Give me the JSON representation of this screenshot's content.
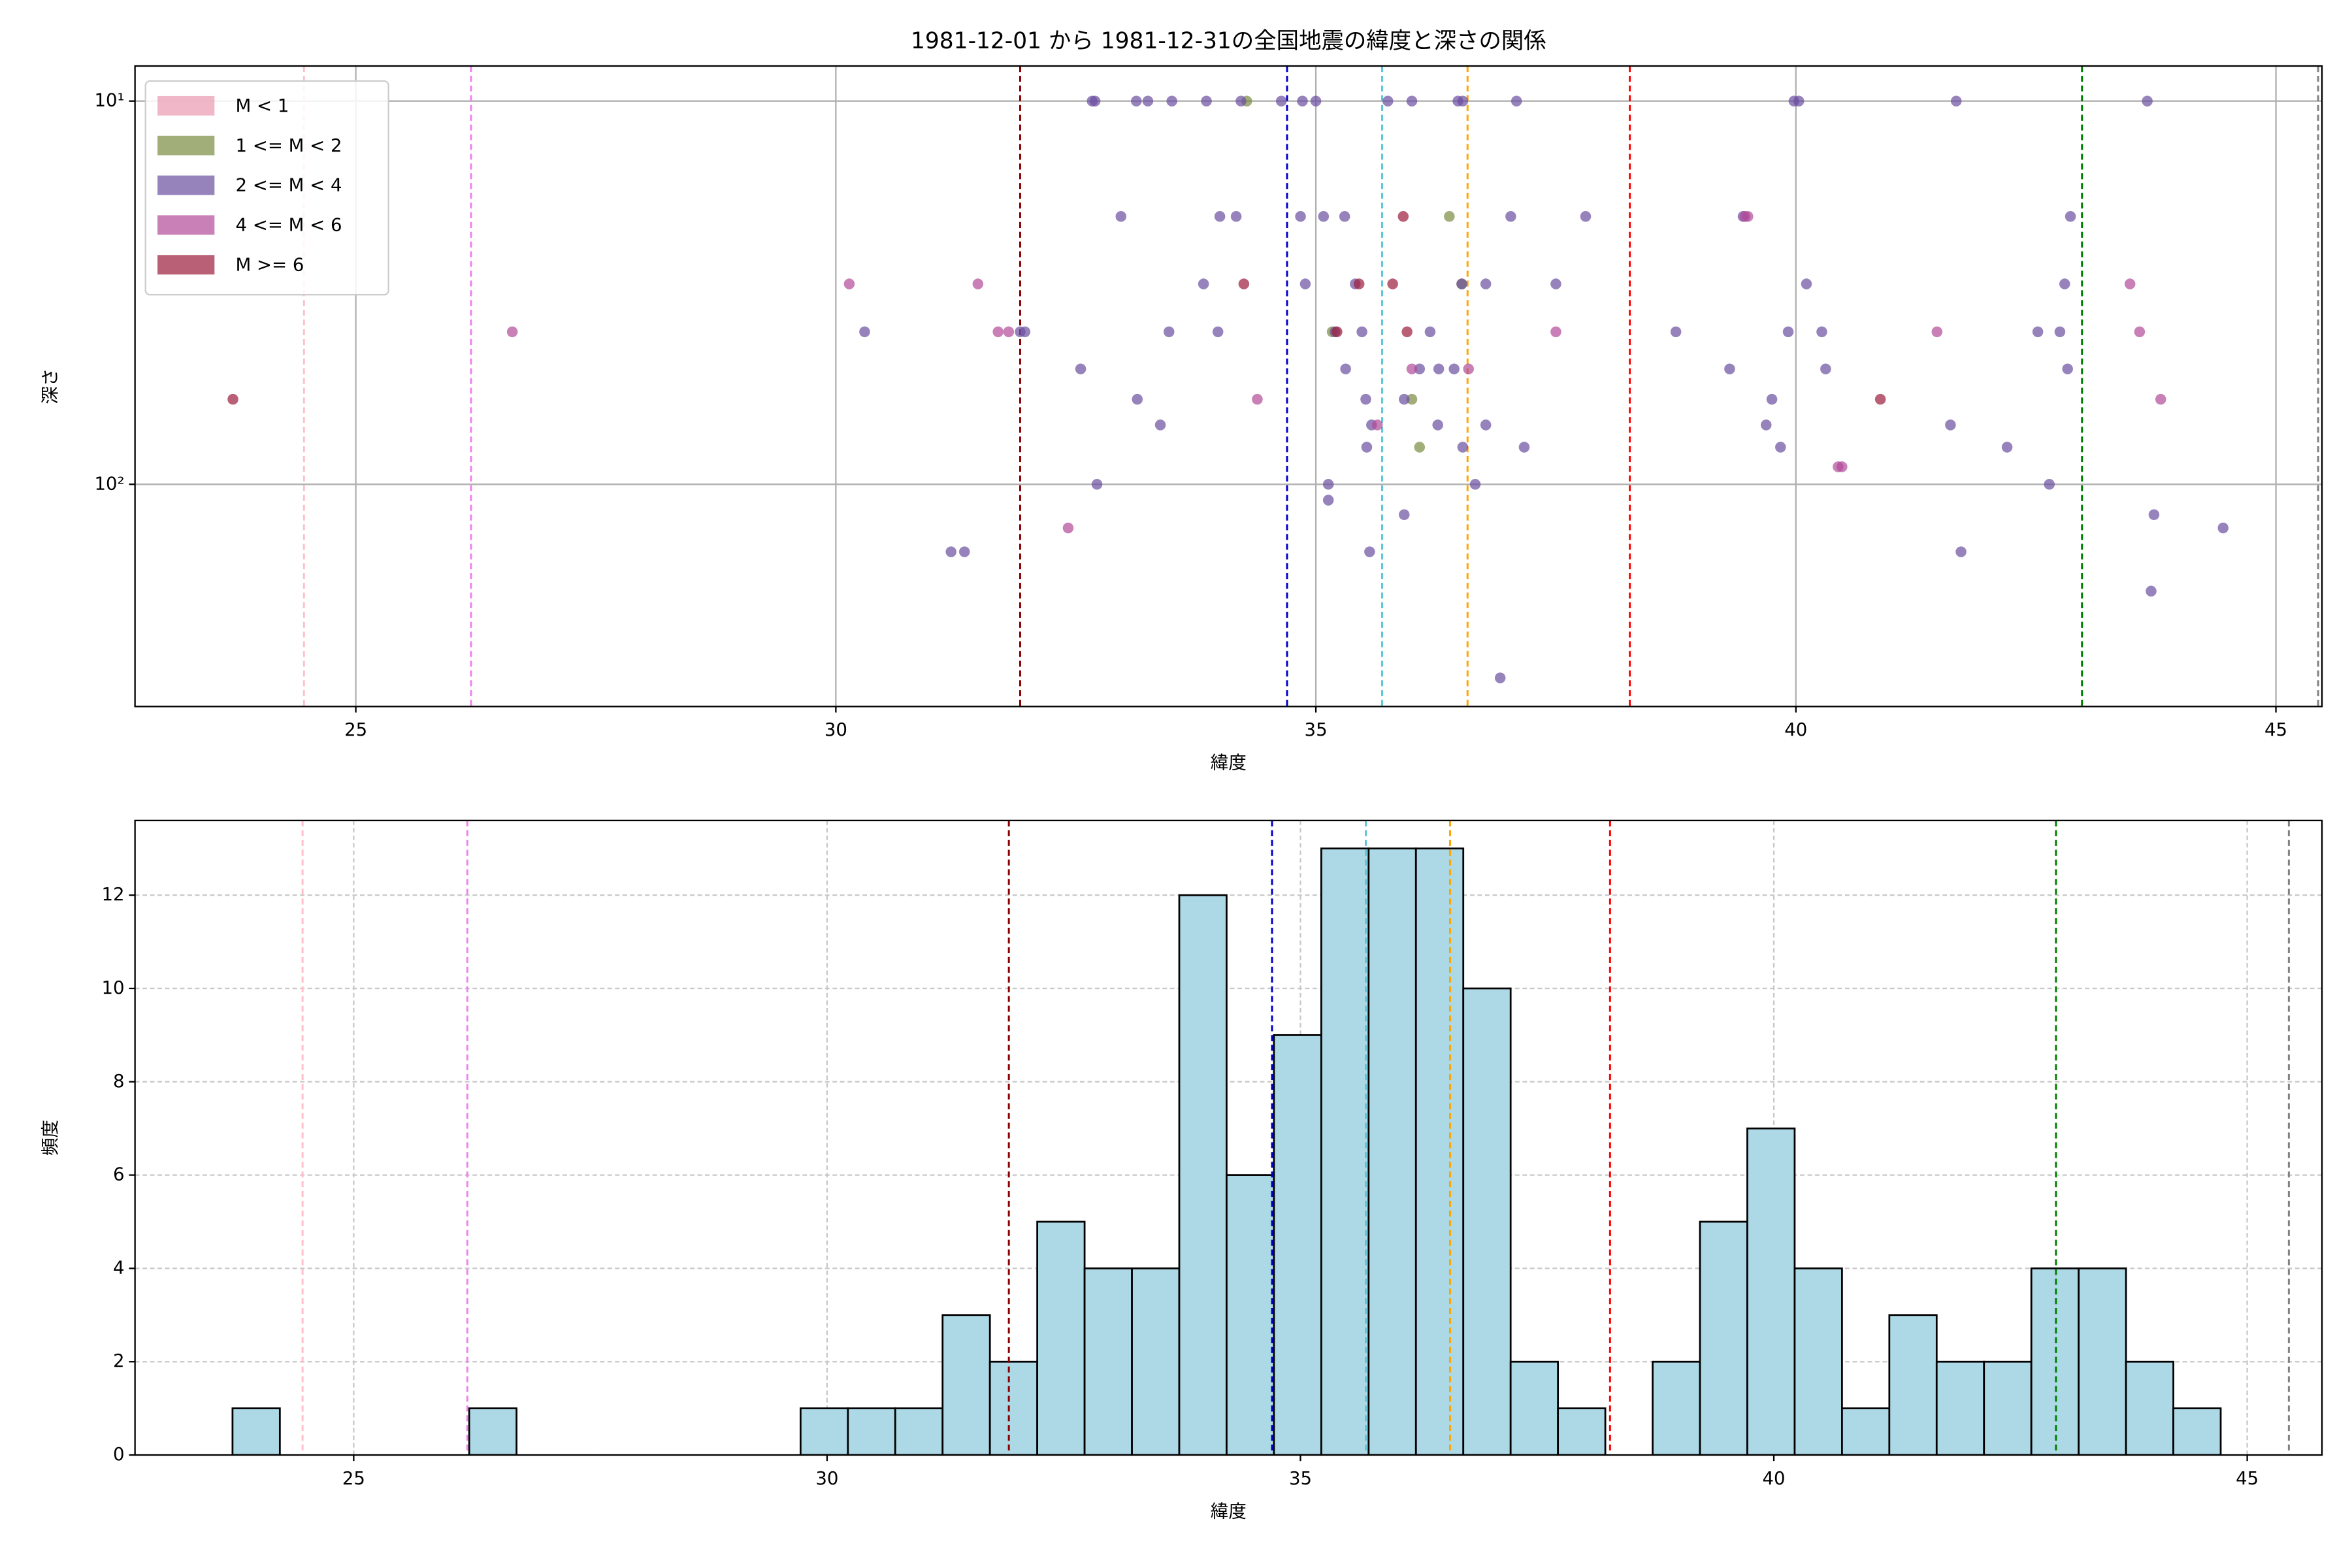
{
  "chart_data": [
    {
      "type": "scatter",
      "title": "1981-12-01 から 1981-12-31の全国地震の緯度と深さの関係",
      "x_label": "緯度",
      "y_label": "深さ",
      "xlim": [
        22.7,
        45.48
      ],
      "xticks": [
        25,
        30,
        35,
        40,
        45
      ],
      "ylim": [
        380,
        8.1
      ],
      "y_scale": "log",
      "yticks": [
        {
          "value": 10,
          "label": "10¹"
        },
        {
          "value": 100,
          "label": "10²"
        }
      ],
      "grid": true,
      "grid_style": "solid",
      "legend": "upper left",
      "marker_alpha": 0.7,
      "reference_lines": [
        {
          "x": 24.46,
          "color": "#ffc0cb"
        },
        {
          "x": 26.2,
          "color": "#ee82ee"
        },
        {
          "x": 31.92,
          "color": "#8b0000"
        },
        {
          "x": 34.7,
          "color": "#0000cd"
        },
        {
          "x": 35.69,
          "color": "#5bc8d8"
        },
        {
          "x": 36.58,
          "color": "#ffa500"
        },
        {
          "x": 38.27,
          "color": "#ff0000"
        },
        {
          "x": 42.98,
          "color": "#008000"
        },
        {
          "x": 45.44,
          "color": "#808080"
        }
      ],
      "series": [
        {
          "name": "M < 1",
          "color": "#e899b0",
          "x": [],
          "values": []
        },
        {
          "name": "1 <= M < 2",
          "color": "#7a8b40",
          "x": [
            34.28,
            36.39,
            36.52,
            35.17,
            36.0,
            36.08
          ],
          "values": [
            10,
            20,
            30,
            40,
            60,
            80
          ]
        },
        {
          "name": "2 <= M < 4",
          "color": "#6b4fa0",
          "x": [
            32.67,
            32.7,
            33.13,
            33.25,
            33.5,
            33.86,
            34.22,
            34.64,
            34.86,
            35.0,
            35.75,
            36.0,
            36.48,
            36.53,
            37.09,
            39.98,
            40.03,
            41.67,
            43.66,
            32.97,
            34.0,
            34.17,
            34.84,
            35.08,
            35.3,
            37.03,
            37.81,
            39.45,
            42.86,
            33.83,
            34.89,
            35.41,
            36.52,
            36.77,
            37.5,
            40.11,
            42.8,
            30.3,
            31.92,
            31.97,
            33.47,
            33.98,
            35.2,
            35.48,
            36.19,
            38.75,
            39.92,
            40.27,
            42.52,
            42.75,
            32.55,
            35.31,
            36.08,
            36.28,
            36.44,
            39.31,
            40.31,
            42.83,
            33.14,
            35.52,
            35.92,
            39.75,
            33.38,
            35.58,
            36.27,
            36.77,
            39.69,
            41.61,
            35.53,
            36.53,
            37.17,
            39.84,
            42.2,
            32.72,
            35.13,
            36.66,
            42.64,
            35.13,
            35.92,
            43.73,
            35.56,
            41.72,
            31.2,
            31.34,
            44.45,
            43.7,
            36.92
          ],
          "values": [
            10,
            10,
            10,
            10,
            10,
            10,
            10,
            10,
            10,
            10,
            10,
            10,
            10,
            10,
            10,
            10,
            10,
            10,
            10,
            20,
            20,
            20,
            20,
            20,
            20,
            20,
            20,
            20,
            20,
            30,
            30,
            30,
            30,
            30,
            30,
            30,
            30,
            40,
            40,
            40,
            40,
            40,
            40,
            40,
            40,
            40,
            40,
            40,
            40,
            40,
            50,
            50,
            50,
            50,
            50,
            50,
            50,
            50,
            60,
            60,
            60,
            60,
            70,
            70,
            70,
            70,
            70,
            70,
            80,
            80,
            80,
            80,
            80,
            100,
            100,
            100,
            100,
            110,
            120,
            120,
            150,
            150,
            150,
            150,
            130,
            190,
            320
          ]
        },
        {
          "name": "4 <= M < 6",
          "color": "#b04a99",
          "x": [
            30.14,
            31.48,
            43.48,
            26.63,
            31.69,
            31.8,
            37.5,
            41.47,
            43.58,
            39.47,
            39.5,
            34.39,
            43.8,
            36.0,
            36.59,
            35.64,
            40.44,
            40.48,
            32.42
          ],
          "values": [
            30,
            30,
            30,
            40,
            40,
            40,
            40,
            40,
            40,
            20,
            20,
            60,
            60,
            50,
            50,
            70,
            90,
            90,
            130
          ]
        },
        {
          "name": "M >= 6",
          "color": "#9c1c3c",
          "x": [
            23.72,
            40.88,
            35.91,
            34.25,
            35.45,
            35.8,
            35.22,
            35.95
          ],
          "values": [
            60,
            60,
            20,
            30,
            30,
            30,
            40,
            40
          ]
        }
      ]
    },
    {
      "type": "histogram",
      "x_label": "緯度",
      "y_label": "頻度",
      "color": "#add8e6",
      "edge_color": "#000000",
      "xlim": [
        22.69,
        45.79
      ],
      "xticks": [
        25,
        30,
        35,
        40,
        45
      ],
      "ylim": [
        0,
        13.6
      ],
      "yticks": [
        0,
        2,
        4,
        6,
        8,
        10,
        12
      ],
      "grid": true,
      "grid_style": "dashed",
      "reference_lines": [
        {
          "x": 24.46,
          "color": "#ffc0cb"
        },
        {
          "x": 26.2,
          "color": "#ee82ee"
        },
        {
          "x": 31.92,
          "color": "#8b0000"
        },
        {
          "x": 34.7,
          "color": "#0000cd"
        },
        {
          "x": 35.69,
          "color": "#5bc8d8"
        },
        {
          "x": 36.58,
          "color": "#ffa500"
        },
        {
          "x": 38.27,
          "color": "#ff0000"
        },
        {
          "x": 42.98,
          "color": "#008000"
        },
        {
          "x": 45.44,
          "color": "#808080"
        }
      ],
      "bins": [
        23.72,
        24.22,
        24.72,
        25.22,
        25.72,
        26.22,
        26.72,
        27.22,
        27.72,
        28.22,
        28.72,
        29.22,
        29.72,
        30.22,
        30.72,
        31.22,
        31.72,
        32.22,
        32.72,
        33.22,
        33.72,
        34.22,
        34.72,
        35.22,
        35.72,
        36.22,
        36.72,
        37.22,
        37.72,
        38.22,
        38.72,
        39.22,
        39.72,
        40.22,
        40.72,
        41.22,
        41.72,
        42.22,
        42.72,
        43.22,
        43.72,
        44.22,
        44.72
      ],
      "values": [
        1,
        0,
        0,
        0,
        0,
        1,
        0,
        0,
        0,
        0,
        0,
        0,
        1,
        1,
        1,
        3,
        2,
        5,
        4,
        4,
        12,
        6,
        9,
        13,
        13,
        13,
        10,
        2,
        1,
        0,
        2,
        5,
        7,
        4,
        1,
        3,
        2,
        2,
        4,
        4,
        2,
        1
      ]
    }
  ]
}
